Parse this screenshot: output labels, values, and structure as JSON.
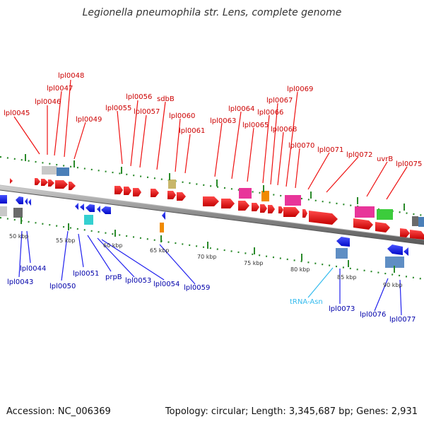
{
  "title": "Legionella pneumophila str. Lens, complete genome",
  "accession": "Accession: NC_006369",
  "topology": "Topology: circular; Length: 3,345,687 bp; Genes: 2,931",
  "colors": {
    "forward_label": "#cc0000",
    "reverse_label": "#0000aa",
    "trna_label": "#33bbee",
    "tick": "#2a8a2a",
    "backbone": "#8c8c8c"
  },
  "scale_labels": [
    "50 kbp",
    "55 kbp",
    "60 kbp",
    "65 kbp",
    "70 kbp",
    "75 kbp",
    "80 kbp",
    "85 kbp",
    "90 kbp"
  ],
  "forward_genes": [
    "lpl0045",
    "lpl0046",
    "lpl0047",
    "lpl0048",
    "lpl0049",
    "lpl0055",
    "lpl0056",
    "lpl0057",
    "sdbB",
    "lpl0060",
    "lpl0061",
    "lpl0063",
    "lpl0064",
    "lpl0065",
    "lpl0066",
    "lpl0067",
    "lpl0068",
    "lpl0069",
    "lpl0070",
    "lpl0071",
    "lpl0072",
    "uvrB",
    "lpl0075"
  ],
  "reverse_genes": [
    "lpl0043",
    "lpl0044",
    "lpl0050",
    "lpl0051",
    "prpB",
    "lpl0053",
    "lpl0054",
    "lpl0059",
    "tRNA-Asn",
    "lpl0073",
    "lpl0076",
    "lpl0077"
  ]
}
